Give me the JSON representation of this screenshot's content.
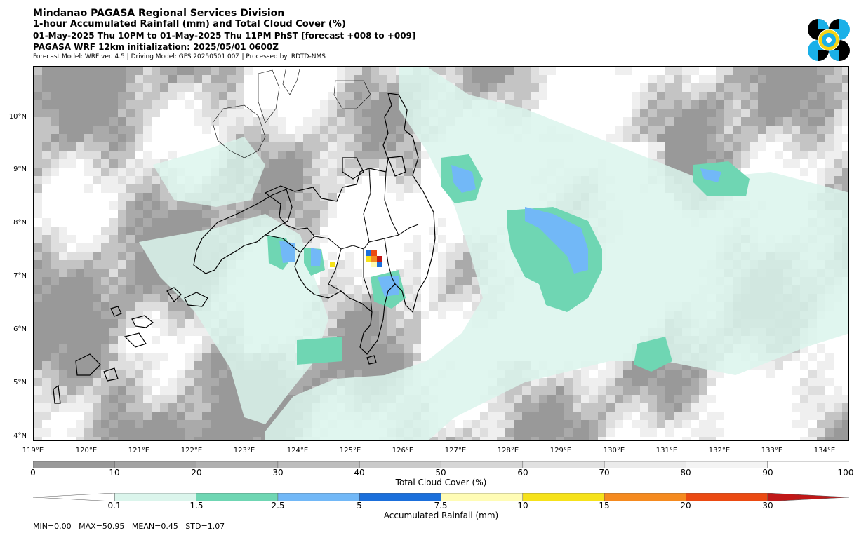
{
  "header": {
    "title": "Mindanao PAGASA Regional Services Division",
    "subtitle": "1-hour Accumulated Rainfall (mm) and Total Cloud Cover (%)",
    "valid_time": "01-May-2025 Thu 10PM to 01-May-2025 Thu 11PM PhST [forecast +008 to +009]",
    "init": "PAGASA WRF 12km initialization: 2025/05/01 0600Z",
    "model_info": "Forecast Model: WRF ver. 4.5 | Driving Model: GFS 20250501 00Z | Processed by: RDTD-NMS"
  },
  "logo": {
    "name": "PAGASA seal",
    "colors": [
      "#000000",
      "#1ab0e8",
      "#f7d414"
    ]
  },
  "map": {
    "lat_labels": [
      "10°N",
      "9°N",
      "8°N",
      "7°N",
      "6°N",
      "5°N",
      "4°N"
    ],
    "lon_labels": [
      "119°E",
      "120°E",
      "121°E",
      "122°E",
      "123°E",
      "124°E",
      "125°E",
      "126°E",
      "127°E",
      "128°E",
      "129°E",
      "130°E",
      "131°E",
      "132°E",
      "133°E",
      "134°E"
    ],
    "lat_range": [
      3.9,
      11.0
    ],
    "lon_range": [
      119.0,
      134.45
    ],
    "rain_cells": [
      {
        "lon": 125.3,
        "lat": 7.4,
        "mm": 8
      },
      {
        "lon": 125.4,
        "lat": 7.3,
        "mm": 30
      },
      {
        "lon": 125.5,
        "lat": 7.2,
        "mm": 7.5
      },
      {
        "lon": 125.3,
        "lat": 7.3,
        "mm": 10
      },
      {
        "lon": 124.7,
        "lat": 7.25,
        "mm": 10
      }
    ]
  },
  "cloud_legend": {
    "label": "Total Cloud Cover (%)",
    "ticks": [
      "0",
      "10",
      "20",
      "30",
      "40",
      "50",
      "60",
      "70",
      "80",
      "90",
      "100"
    ],
    "colors": [
      "#999999",
      "#a3a3a3",
      "#b0b0b0",
      "#bdbdbd",
      "#cacaca",
      "#d6d6d6",
      "#e1e1e1",
      "#ebebeb",
      "#f4f4f4",
      "#ffffff"
    ]
  },
  "rain_legend": {
    "label": "Accumulated Rainfall (mm)",
    "ticks": [
      "0.1",
      "1.5",
      "2.5",
      "5",
      "7.5",
      "10",
      "15",
      "20",
      "30"
    ],
    "colors": [
      "#dbf5ec",
      "#6fd6b3",
      "#72b8f7",
      "#1b6fdb",
      "#fffcb5",
      "#f6e21a",
      "#f58a1f",
      "#eb4a12",
      "#c01818"
    ]
  },
  "stats": "MIN=0.00   MAX=50.95   MEAN=0.45   STD=1.07"
}
